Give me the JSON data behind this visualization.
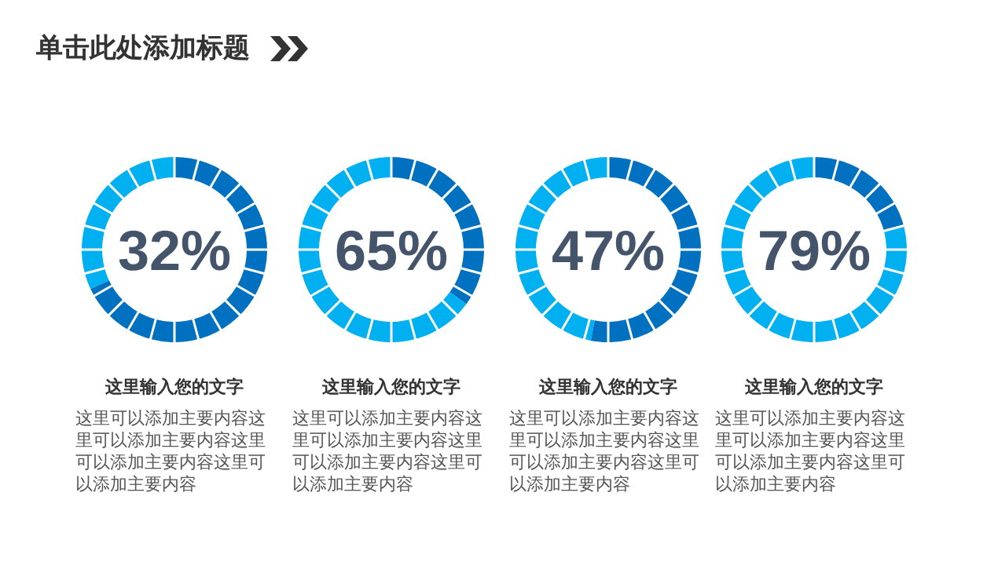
{
  "chart_data": [
    {
      "type": "other",
      "title": "单击此处添加标题"
    },
    {
      "type": "donut",
      "categories": [
        null,
        null
      ],
      "values": [
        32,
        68
      ],
      "colors": [
        "#00b0f0",
        "#0070c0"
      ],
      "title": "这里输入您的文字",
      "annotations": [
        "32%",
        "这里可以添加主要内容这里可以添加主要内容这里可以添加主要内容这里可以添加主要内容"
      ]
    },
    {
      "type": "donut",
      "categories": [
        null,
        null
      ],
      "values": [
        65,
        35
      ],
      "colors": [
        "#00b0f0",
        "#0070c0"
      ],
      "title": "这里输入您的文字",
      "annotations": [
        "65%",
        "这里可以添加主要内容这里可以添加主要内容这里可以添加主要内容这里可以添加主要内容"
      ]
    },
    {
      "type": "donut",
      "categories": [
        null,
        null
      ],
      "values": [
        47,
        53
      ],
      "colors": [
        "#00b0f0",
        "#0070c0"
      ],
      "title": "这里输入您的文字",
      "annotations": [
        "47%",
        "这里可以添加主要内容这里可以添加主要内容这里可以添加主要内容这里可以添加主要内容"
      ]
    },
    {
      "type": "donut",
      "categories": [
        null,
        null
      ],
      "values": [
        79,
        21
      ],
      "colors": [
        "#00b0f0",
        "#0070c0"
      ],
      "title": "这里输入您的文字",
      "annotations": [
        "79%",
        "这里可以添加主要内容这里可以添加主要内容这里可以添加主要内容这里可以添加主要内容"
      ]
    }
  ]
}
